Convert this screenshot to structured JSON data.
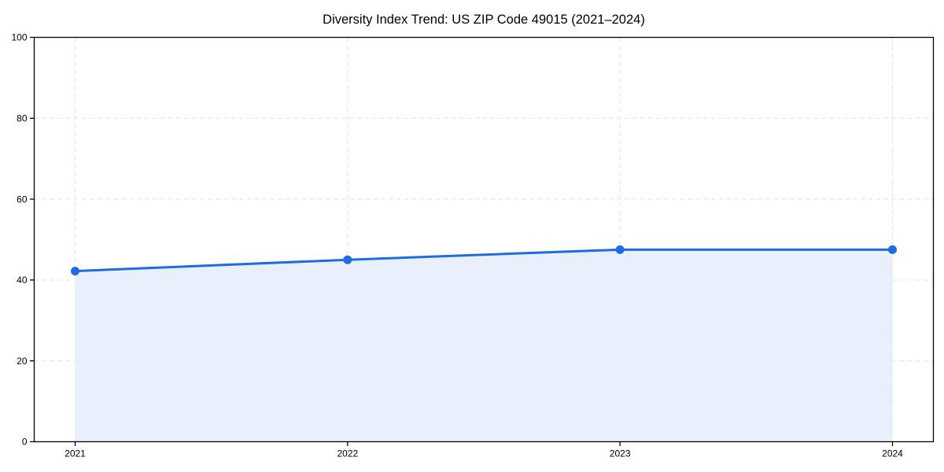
{
  "chart_data": {
    "type": "area",
    "title": "Diversity Index Trend: US ZIP Code 49015 (2021–2024)",
    "xlabel": "",
    "ylabel": "",
    "x": [
      2021,
      2022,
      2023,
      2024
    ],
    "series": [
      {
        "name": "Diversity Index",
        "values": [
          42.2,
          45.0,
          47.5,
          47.5
        ]
      }
    ],
    "ylim": [
      0,
      100
    ],
    "yticks": [
      0,
      20,
      40,
      60,
      80,
      100
    ],
    "xticks": [
      "2021",
      "2022",
      "2023",
      "2024"
    ],
    "grid": true,
    "grid_style": "dashed",
    "legend": "none",
    "marker": "circle"
  },
  "colors": {
    "line": "#1f6be0",
    "marker": "#1f6be0",
    "area_fill": "#e9f0fc",
    "grid": "#e4e4e4",
    "spine": "#000000",
    "tick_text": "#000000",
    "title_text": "#000000",
    "background": "#ffffff"
  }
}
